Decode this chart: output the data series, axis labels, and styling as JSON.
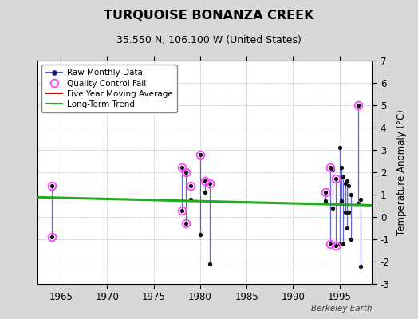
{
  "title": "TURQUOISE BONANZA CREEK",
  "subtitle": "35.550 N, 106.100 W (United States)",
  "ylabel": "Temperature Anomaly (°C)",
  "credit": "Berkeley Earth",
  "ylim": [
    -3,
    7
  ],
  "yticks": [
    -3,
    -2,
    -1,
    0,
    1,
    2,
    3,
    4,
    5,
    6,
    7
  ],
  "xlim": [
    1962.5,
    1998.5
  ],
  "xticks": [
    1965,
    1970,
    1975,
    1980,
    1985,
    1990,
    1995
  ],
  "background_color": "#d8d8d8",
  "plot_background": "#ffffff",
  "raw_segments": [
    {
      "x": [
        1964.0,
        1964.0
      ],
      "y": [
        1.4,
        -0.9
      ]
    },
    {
      "x": [
        1978.0,
        1978.0
      ],
      "y": [
        2.2,
        0.3
      ]
    },
    {
      "x": [
        1978.5,
        1978.5
      ],
      "y": [
        2.0,
        -0.3
      ]
    },
    {
      "x": [
        1979.0,
        1979.0
      ],
      "y": [
        1.4,
        0.8
      ]
    },
    {
      "x": [
        1980.0,
        1980.0
      ],
      "y": [
        2.8,
        -0.8
      ]
    },
    {
      "x": [
        1980.5,
        1980.5
      ],
      "y": [
        1.6,
        1.1
      ]
    },
    {
      "x": [
        1981.0,
        1981.0
      ],
      "y": [
        1.5,
        -2.1
      ]
    },
    {
      "x": [
        1993.5,
        1993.5
      ],
      "y": [
        1.1,
        0.7
      ]
    },
    {
      "x": [
        1994.0,
        1994.0
      ],
      "y": [
        2.2,
        -1.2
      ]
    },
    {
      "x": [
        1994.3,
        1994.3
      ],
      "y": [
        2.1,
        0.4
      ]
    },
    {
      "x": [
        1994.6,
        1994.6
      ],
      "y": [
        1.7,
        -1.3
      ]
    },
    {
      "x": [
        1995.0,
        1995.0
      ],
      "y": [
        3.1,
        -1.2
      ]
    },
    {
      "x": [
        1995.2,
        1995.2
      ],
      "y": [
        2.2,
        0.7
      ]
    },
    {
      "x": [
        1995.4,
        1995.4
      ],
      "y": [
        1.8,
        -1.2
      ]
    },
    {
      "x": [
        1995.6,
        1995.6
      ],
      "y": [
        1.5,
        0.2
      ]
    },
    {
      "x": [
        1995.8,
        1995.8
      ],
      "y": [
        1.6,
        -0.5
      ]
    },
    {
      "x": [
        1996.0,
        1996.0
      ],
      "y": [
        1.4,
        0.2
      ]
    },
    {
      "x": [
        1996.2,
        1996.2
      ],
      "y": [
        1.0,
        -1.0
      ]
    },
    {
      "x": [
        1997.0,
        1997.0
      ],
      "y": [
        5.0,
        0.6
      ]
    },
    {
      "x": [
        1997.3,
        1997.3
      ],
      "y": [
        0.8,
        -2.2
      ]
    }
  ],
  "raw_dots": [
    [
      1964.0,
      1.4
    ],
    [
      1964.0,
      -0.9
    ],
    [
      1978.0,
      2.2
    ],
    [
      1978.0,
      0.3
    ],
    [
      1978.5,
      2.0
    ],
    [
      1978.5,
      -0.3
    ],
    [
      1979.0,
      1.4
    ],
    [
      1979.0,
      0.8
    ],
    [
      1980.0,
      2.8
    ],
    [
      1980.0,
      -0.8
    ],
    [
      1980.5,
      1.6
    ],
    [
      1980.5,
      1.1
    ],
    [
      1981.0,
      1.5
    ],
    [
      1981.0,
      -2.1
    ],
    [
      1993.5,
      1.1
    ],
    [
      1993.5,
      0.7
    ],
    [
      1994.0,
      2.2
    ],
    [
      1994.0,
      -1.2
    ],
    [
      1994.3,
      2.1
    ],
    [
      1994.3,
      0.4
    ],
    [
      1994.6,
      1.7
    ],
    [
      1994.6,
      -1.3
    ],
    [
      1995.0,
      3.1
    ],
    [
      1995.0,
      -1.2
    ],
    [
      1995.2,
      2.2
    ],
    [
      1995.2,
      0.7
    ],
    [
      1995.4,
      1.8
    ],
    [
      1995.4,
      -1.2
    ],
    [
      1995.6,
      1.5
    ],
    [
      1995.6,
      0.2
    ],
    [
      1995.8,
      1.6
    ],
    [
      1995.8,
      -0.5
    ],
    [
      1996.0,
      1.4
    ],
    [
      1996.0,
      0.2
    ],
    [
      1996.2,
      1.0
    ],
    [
      1996.2,
      -1.0
    ],
    [
      1997.0,
      5.0
    ],
    [
      1997.0,
      0.6
    ],
    [
      1997.3,
      0.8
    ],
    [
      1997.3,
      -2.2
    ]
  ],
  "qc_fail_points": [
    [
      1964.0,
      1.4
    ],
    [
      1964.0,
      -0.9
    ],
    [
      1978.0,
      2.2
    ],
    [
      1978.0,
      0.3
    ],
    [
      1978.5,
      2.0
    ],
    [
      1978.5,
      -0.3
    ],
    [
      1979.0,
      1.4
    ],
    [
      1980.0,
      2.8
    ],
    [
      1980.5,
      1.6
    ],
    [
      1981.0,
      1.5
    ],
    [
      1993.5,
      1.1
    ],
    [
      1994.0,
      2.2
    ],
    [
      1994.0,
      -1.2
    ],
    [
      1994.6,
      1.7
    ],
    [
      1994.6,
      -1.3
    ],
    [
      1997.0,
      5.0
    ]
  ],
  "long_term_trend": {
    "x": [
      1962.5,
      1998.5
    ],
    "y": [
      0.88,
      0.52
    ]
  },
  "line_color": "#3333cc",
  "dot_color": "#111111",
  "qc_color": "#ff44ff",
  "trend_color": "#22aa22",
  "moving_avg_color": "#cc0000"
}
